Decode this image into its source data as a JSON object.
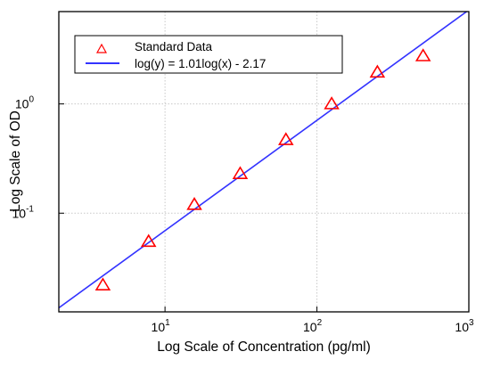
{
  "chart_data": {
    "type": "scatter",
    "title": "",
    "xlabel": "Log Scale of Concentration (pg/ml)",
    "ylabel": "Log Scale of OD",
    "xscale": "log",
    "yscale": "log",
    "xlim": [
      2,
      1000
    ],
    "ylim": [
      0.0125,
      7
    ],
    "grid": true,
    "legend_position": "top-left",
    "x_ticks": [
      {
        "value": 10,
        "base": "10",
        "exp": "1"
      },
      {
        "value": 100,
        "base": "10",
        "exp": "2"
      },
      {
        "value": 1000,
        "base": "10",
        "exp": "3"
      }
    ],
    "y_ticks": [
      {
        "value": 0.1,
        "base": "10",
        "exp": "-1"
      },
      {
        "value": 1,
        "base": "10",
        "exp": "0"
      }
    ],
    "series": [
      {
        "name": "Standard Data",
        "kind": "scatter",
        "marker": "triangle",
        "color": "#ff0000",
        "x": [
          3.9,
          7.8,
          15.6,
          31.25,
          62.5,
          125,
          250,
          500
        ],
        "y": [
          0.022,
          0.055,
          0.12,
          0.23,
          0.47,
          1.0,
          1.95,
          2.75
        ]
      },
      {
        "name": "log(y) = 1.01log(x) - 2.17",
        "kind": "line",
        "color": "#3333ff",
        "slope": 1.01,
        "intercept": -2.17
      }
    ]
  }
}
